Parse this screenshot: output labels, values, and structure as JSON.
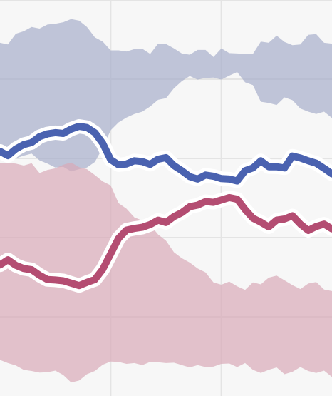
{
  "chart_data": {
    "type": "area",
    "grid": true,
    "legend": "none",
    "x": [
      0,
      1,
      2,
      3,
      4,
      5,
      6,
      7,
      8,
      9,
      10,
      11,
      12,
      13,
      14,
      15,
      16,
      17,
      18,
      19,
      20,
      21,
      22,
      23,
      24,
      25,
      26,
      27,
      28,
      29,
      30,
      31,
      32,
      33,
      34,
      35,
      36,
      37,
      38,
      39,
      40,
      41,
      42
    ],
    "xlim": [
      0,
      42
    ],
    "ylim": [
      0,
      100
    ],
    "series": [
      {
        "color": "#4a62b0",
        "band_color": "#a6aeca",
        "values": [
          61.8,
          60.7,
          62.4,
          63.5,
          64.0,
          65.5,
          66.2,
          66.5,
          66.3,
          67.4,
          68.1,
          67.8,
          66.5,
          63.8,
          59.7,
          58.4,
          58.6,
          59.4,
          59.2,
          58.5,
          59.8,
          60.2,
          58.2,
          56.9,
          55.4,
          54.8,
          55.8,
          55.5,
          54.9,
          54.8,
          54.3,
          56.9,
          57.6,
          59.4,
          57.9,
          57.9,
          57.6,
          60.6,
          60.1,
          59.4,
          58.8,
          57.5,
          56.1
        ],
        "upper": [
          89.2,
          88.8,
          91.5,
          92.1,
          93.2,
          92.8,
          93.8,
          94.0,
          94.4,
          95.2,
          94.8,
          93.2,
          90.6,
          89.5,
          87.3,
          87.3,
          87.0,
          87.6,
          87.7,
          86.4,
          89.0,
          88.9,
          87.8,
          86.5,
          86.2,
          87.4,
          87.4,
          85.6,
          87.8,
          86.6,
          86.5,
          86.4,
          86.4,
          89.5,
          89.2,
          91.0,
          89.4,
          88.6,
          88.8,
          91.2,
          91.4,
          89.2,
          89.0
        ],
        "lower": [
          61.0,
          59.1,
          60.0,
          60.7,
          61.2,
          59.5,
          58.7,
          57.7,
          57.9,
          56.7,
          57.3,
          57.7,
          59.1,
          62.7,
          67.1,
          69.1,
          70.3,
          71.2,
          71.8,
          73.1,
          74.8,
          75.2,
          77.7,
          79.5,
          80.8,
          79.9,
          80.3,
          80.4,
          79.9,
          80.9,
          81.8,
          79.2,
          78.5,
          74.3,
          74.0,
          73.5,
          75.4,
          74.7,
          72.6,
          71.8,
          71.2,
          71.8,
          70.2
        ]
      },
      {
        "color": "#b44d72",
        "band_color": "#d9aab8",
        "values": [
          33.1,
          34.4,
          33.0,
          32.2,
          31.9,
          30.5,
          29.4,
          29.3,
          29.1,
          28.5,
          27.9,
          28.7,
          29.4,
          32.0,
          35.9,
          39.8,
          41.9,
          42.3,
          42.6,
          43.3,
          44.4,
          43.8,
          45.3,
          46.3,
          47.8,
          48.2,
          49.1,
          48.9,
          49.5,
          50.1,
          49.7,
          47.1,
          44.9,
          43.9,
          42.7,
          44.4,
          44.7,
          45.5,
          43.4,
          41.8,
          42.8,
          43.4,
          42.2
        ],
        "upper": [
          58.8,
          58.9,
          58.7,
          58.2,
          58.8,
          56.3,
          57.1,
          57.5,
          58.4,
          59.0,
          57.8,
          57.3,
          55.8,
          54.2,
          53.2,
          48.7,
          47.3,
          45.1,
          44.3,
          43.2,
          40.8,
          39.2,
          36.3,
          34.8,
          33.7,
          32.2,
          31.2,
          28.7,
          28.1,
          28.9,
          27.7,
          26.8,
          28.7,
          28.2,
          29.9,
          30.4,
          29.2,
          28.0,
          27.0,
          28.4,
          28.8,
          26.9,
          26.5
        ],
        "lower": [
          9.1,
          8.3,
          7.7,
          6.6,
          6.3,
          5.9,
          6.0,
          6.4,
          5.3,
          3.4,
          3.9,
          5.5,
          6.3,
          7.9,
          8.7,
          8.6,
          8.1,
          8.3,
          7.8,
          8.6,
          8.5,
          8.3,
          8.4,
          7.8,
          7.2,
          7.8,
          7.3,
          7.4,
          8.1,
          8.2,
          7.3,
          8.3,
          6.6,
          5.8,
          6.6,
          7.2,
          5.5,
          6.1,
          7.3,
          6.3,
          5.8,
          6.4,
          4.8
        ]
      }
    ]
  }
}
